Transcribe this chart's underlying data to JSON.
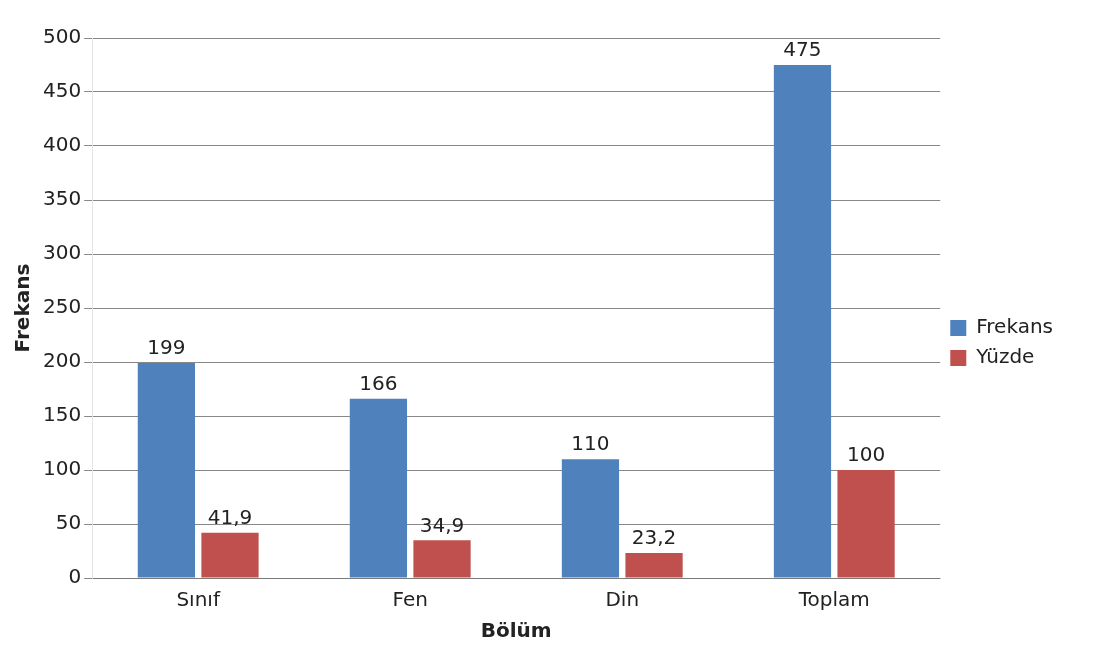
{
  "chart_data": {
    "type": "bar",
    "xlabel": "Bölüm",
    "ylabel": "Frekans",
    "categories": [
      "Sınıf",
      "Fen",
      "Din",
      "Toplam"
    ],
    "series": [
      {
        "name": "Frekans",
        "color": "#4f81bd",
        "values": [
          199,
          166,
          110,
          475
        ],
        "value_labels": [
          "199",
          "166",
          "110",
          "475"
        ]
      },
      {
        "name": "Yüzde",
        "color": "#c0504d",
        "values": [
          41.9,
          34.9,
          23.2,
          100
        ],
        "value_labels": [
          "41,9",
          "34,9",
          "23,2",
          "100"
        ]
      }
    ],
    "ylim": [
      0,
      500
    ],
    "yticks": [
      0,
      50,
      100,
      150,
      200,
      250,
      300,
      350,
      400,
      450,
      500
    ],
    "grid": "y",
    "legend": "right"
  }
}
